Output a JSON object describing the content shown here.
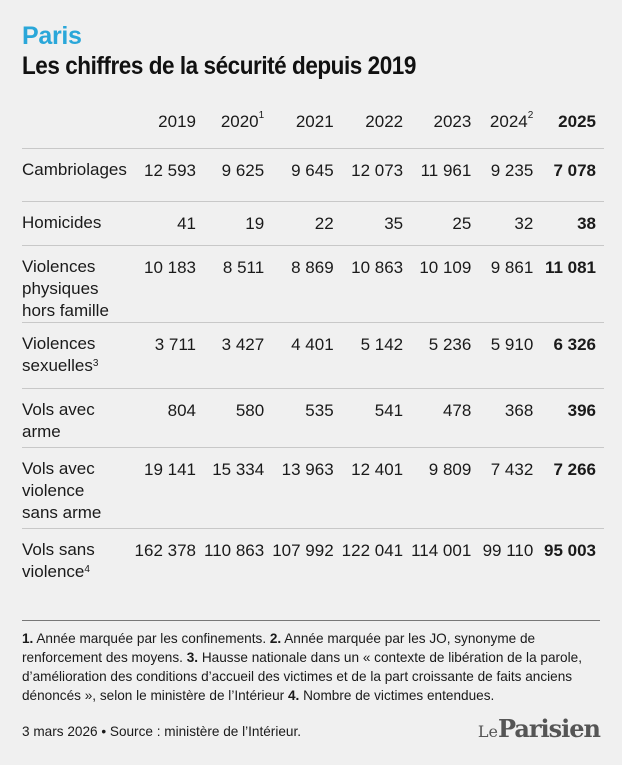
{
  "header": {
    "kicker": "Paris",
    "title": "Les chiffres de la sécurité depuis 2019"
  },
  "colors": {
    "accent": "#2aa7d9",
    "background": "#f0f0f0",
    "rule": "#c8c8c8"
  },
  "chart_data": {
    "type": "table",
    "columns": [
      {
        "label": "2019",
        "sup": ""
      },
      {
        "label": "2020",
        "sup": "1"
      },
      {
        "label": "2021",
        "sup": ""
      },
      {
        "label": "2022",
        "sup": ""
      },
      {
        "label": "2023",
        "sup": ""
      },
      {
        "label": "2024",
        "sup": "2"
      },
      {
        "label": "2025",
        "sup": ""
      }
    ],
    "rows": [
      {
        "lines": [
          "Cambriolages"
        ],
        "sup": "",
        "values": [
          "12 593",
          "9 625",
          "9 645",
          "12 073",
          "11 961",
          "9 235",
          "7 078"
        ]
      },
      {
        "lines": [
          "Homicides"
        ],
        "sup": "",
        "values": [
          "41",
          "19",
          "22",
          "35",
          "25",
          "32",
          "38"
        ]
      },
      {
        "lines": [
          "Violences",
          "physiques",
          "hors famille"
        ],
        "sup": "",
        "values": [
          "10 183",
          "8 511",
          "8 869",
          "10 863",
          "10 109",
          "9 861",
          "11 081"
        ]
      },
      {
        "lines": [
          "Violences",
          "sexuelles"
        ],
        "sup": "3",
        "values": [
          "3 711",
          "3 427",
          "4 401",
          "5 142",
          "5 236",
          "5 910",
          "6 326"
        ]
      },
      {
        "lines": [
          "Vols avec",
          "arme"
        ],
        "sup": "",
        "values": [
          "804",
          "580",
          "535",
          "541",
          "478",
          "368",
          "396"
        ]
      },
      {
        "lines": [
          "Vols avec",
          "violence",
          "sans arme"
        ],
        "sup": "",
        "values": [
          "19 141",
          "15 334",
          "13 963",
          "12 401",
          "9 809",
          "7 432",
          "7 266"
        ]
      },
      {
        "lines": [
          "Vols sans",
          "violence"
        ],
        "sup": "4",
        "values": [
          "162 378",
          "110 863",
          "107 992",
          "122 041",
          "114 001",
          "99 110",
          "95 003"
        ]
      }
    ]
  },
  "notes": {
    "n1_num": "1.",
    "n1_text": " Année marquée par les confinements. ",
    "n2_num": "2.",
    "n2_text": " Année marquée par les JO, synonyme de renforcement des moyens. ",
    "n3_num": "3.",
    "n3_text": " Hausse nationale dans un « contexte de libération de la parole, d’amélioration des conditions d’accueil des victimes et de la part croissante de faits anciens dénoncés », selon le ministère de l’Intérieur ",
    "n4_num": "4.",
    "n4_text": " Nombre de victimes entendues."
  },
  "footer": {
    "source": "3 mars 2026 • Source : ministère de l’Intérieur.",
    "logo_le": "Le",
    "logo_name": "Parisien"
  }
}
